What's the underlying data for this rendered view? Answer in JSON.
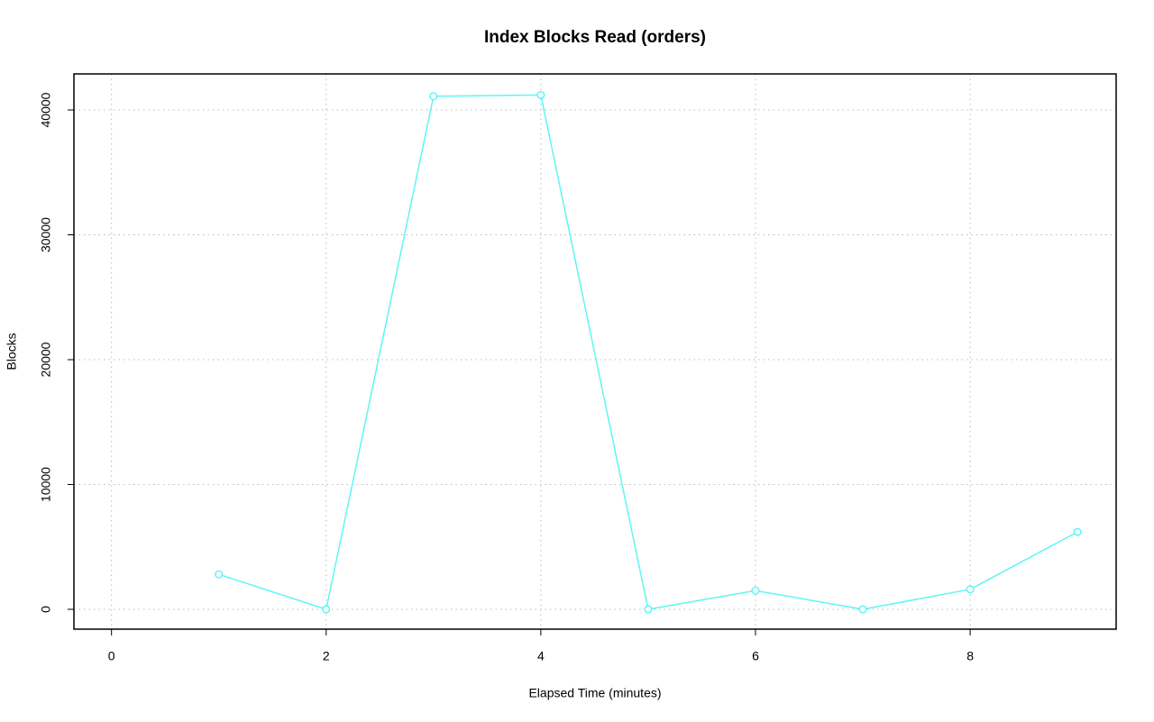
{
  "chart_data": {
    "type": "line",
    "title": "Index Blocks Read (orders)",
    "x_label": "Elapsed Time (minutes)",
    "y_label": "Blocks",
    "x": [
      1,
      2,
      3,
      4,
      5,
      6,
      7,
      8,
      9
    ],
    "values": [
      2800,
      0,
      41100,
      41200,
      0,
      1500,
      0,
      1600,
      6200
    ],
    "color": "#5ff5f5",
    "xlim": [
      -0.35,
      9.36
    ],
    "xticks": [
      0,
      2,
      4,
      6,
      8
    ],
    "ylim": [
      -1590,
      42890
    ],
    "yticks": [
      0,
      10000,
      20000,
      30000,
      40000
    ],
    "grid": true
  }
}
